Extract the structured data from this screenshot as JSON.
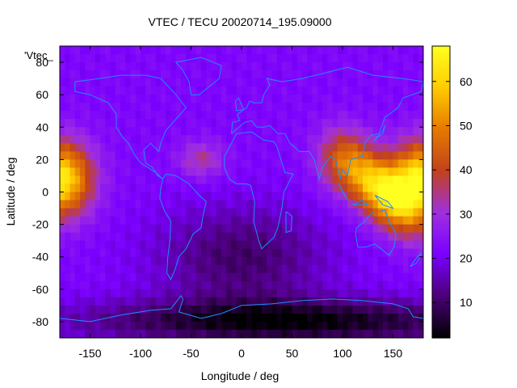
{
  "chart_data": {
    "type": "heatmap",
    "title": "VTEC / TECU 20020714_195.09000",
    "xlabel": "Longitude / deg",
    "ylabel": "Latitude / deg",
    "overlay_label": "'Vtec_",
    "xlim": [
      -180,
      180
    ],
    "ylim": [
      -90,
      90
    ],
    "xticks": [
      -150,
      -100,
      -50,
      0,
      50,
      100,
      150
    ],
    "yticks": [
      -80,
      -60,
      -40,
      -20,
      0,
      20,
      40,
      60,
      80
    ],
    "colorbar": {
      "range": [
        2,
        68
      ],
      "ticks": [
        10,
        20,
        30,
        40,
        50,
        60
      ],
      "palette": [
        "#000000",
        "#4b0078",
        "#7a00ff",
        "#9f2fe0",
        "#c2421c",
        "#e67800",
        "#ffcc00",
        "#ffff20"
      ]
    },
    "grid": false,
    "coastline_color": "#1e8cff",
    "field_model": {
      "description_units": "TECU",
      "background": 22,
      "peaks": [
        {
          "lon": -180,
          "lat": 8,
          "value": 65
        },
        {
          "lon": 180,
          "lat": 8,
          "value": 65
        },
        {
          "lon": 140,
          "lat": 0,
          "value": 62
        },
        {
          "lon": 100,
          "lat": 20,
          "value": 38
        },
        {
          "lon": -40,
          "lat": 20,
          "value": 34
        }
      ],
      "lows": [
        {
          "lon": 0,
          "lat": -40,
          "value": 10
        },
        {
          "lon": 50,
          "lat": -80,
          "value": 3
        }
      ]
    }
  }
}
